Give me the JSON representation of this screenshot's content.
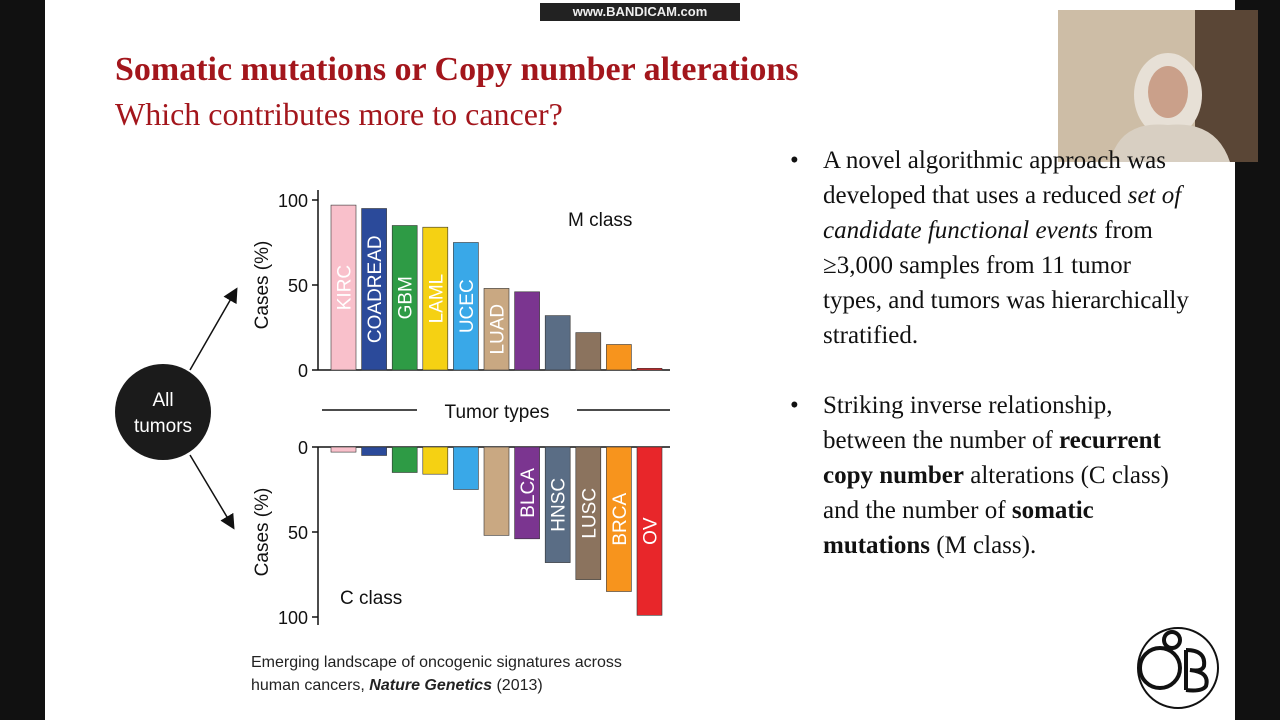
{
  "watermark": "www.BANDICAM.com",
  "title": "Somatic mutations or Copy number alterations",
  "subtitle": "Which contributes more to cancer?",
  "node": [
    "All",
    "tumors"
  ],
  "divider_label": "Tumor types",
  "chart_data": [
    {
      "type": "bar",
      "label": "M class",
      "ylabel": "Cases (%)",
      "categories": [
        "KIRC",
        "COADREAD",
        "GBM",
        "LAML",
        "UCEC",
        "LUAD",
        null,
        null,
        null,
        null,
        null
      ],
      "values": [
        97,
        95,
        85,
        84,
        75,
        48,
        46,
        32,
        22,
        15,
        1
      ],
      "colors": [
        "#f9c0cb",
        "#2b4a9a",
        "#2e9b45",
        "#f5d113",
        "#39a8e8",
        "#c9a882",
        "#7b3590",
        "#5a6d85",
        "#8b735e",
        "#f7941d",
        "#e8262a"
      ],
      "ylim": [
        0,
        100
      ],
      "yticks": [
        0,
        50,
        100
      ]
    },
    {
      "type": "bar",
      "label": "C class",
      "ylabel": "Cases (%)",
      "categories": [
        null,
        null,
        null,
        null,
        null,
        null,
        "BLCA",
        "HNSC",
        "LUSC",
        "BRCA",
        "OV"
      ],
      "values": [
        3,
        5,
        15,
        16,
        25,
        52,
        54,
        68,
        78,
        85,
        99
      ],
      "colors": [
        "#f9c0cb",
        "#2b4a9a",
        "#2e9b45",
        "#f5d113",
        "#39a8e8",
        "#c9a882",
        "#7b3590",
        "#5a6d85",
        "#8b735e",
        "#f7941d",
        "#e8262a"
      ],
      "ylim": [
        0,
        100
      ],
      "yticks": [
        0,
        50,
        100
      ],
      "y_inverted": true
    }
  ],
  "caption": {
    "line1": "Emerging landscape of oncogenic signatures across",
    "line2": "human cancers,",
    "journal": "Nature Genetics",
    "year": "(2013)"
  },
  "bullets": [
    [
      "A novel algorithmic approach was developed that uses a reduced",
      {
        "italic": "set of candidate functional events"
      },
      "from ≥3,000 samples from 11 tumor types, and tumors was hierarchically stratified."
    ],
    [
      "Striking inverse relationship, between the number of",
      {
        "bold": "recurrent copy number"
      },
      "alterations (C class) and the number of",
      {
        "bold": "somatic mutations"
      },
      "(M class)."
    ]
  ]
}
